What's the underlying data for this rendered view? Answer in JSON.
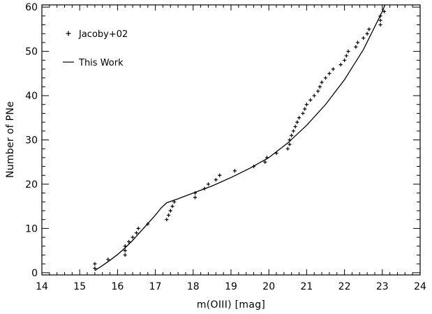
{
  "chart_data": {
    "type": "scatter",
    "title": "",
    "xlabel": "m(OIII) [mag]",
    "ylabel": "Number of PNe",
    "xlim": [
      14,
      24
    ],
    "ylim": [
      -0.5,
      60.5
    ],
    "xticks": [
      14,
      15,
      16,
      17,
      18,
      19,
      20,
      21,
      22,
      23,
      24
    ],
    "yticks": [
      0,
      10,
      20,
      30,
      40,
      50,
      60
    ],
    "grid": false,
    "legend_position": "top-left",
    "series": [
      {
        "name": "Jacoby+02",
        "kind": "scatter",
        "marker": "plus",
        "points": [
          [
            15.4,
            1
          ],
          [
            15.4,
            2
          ],
          [
            15.75,
            3
          ],
          [
            16.2,
            4
          ],
          [
            16.2,
            5
          ],
          [
            16.2,
            6
          ],
          [
            16.3,
            7
          ],
          [
            16.4,
            8
          ],
          [
            16.5,
            9
          ],
          [
            16.55,
            10
          ],
          [
            16.8,
            11
          ],
          [
            17.3,
            12
          ],
          [
            17.35,
            13
          ],
          [
            17.4,
            14
          ],
          [
            17.45,
            15
          ],
          [
            17.5,
            16
          ],
          [
            18.05,
            17
          ],
          [
            18.05,
            18
          ],
          [
            18.3,
            19
          ],
          [
            18.4,
            20
          ],
          [
            18.6,
            21
          ],
          [
            18.7,
            22
          ],
          [
            19.1,
            23
          ],
          [
            19.6,
            24
          ],
          [
            19.9,
            25
          ],
          [
            19.95,
            26
          ],
          [
            20.2,
            27
          ],
          [
            20.5,
            28
          ],
          [
            20.55,
            29
          ],
          [
            20.55,
            30
          ],
          [
            20.6,
            31
          ],
          [
            20.65,
            32
          ],
          [
            20.7,
            33
          ],
          [
            20.75,
            34
          ],
          [
            20.8,
            35
          ],
          [
            20.9,
            36
          ],
          [
            20.95,
            37
          ],
          [
            21.0,
            38
          ],
          [
            21.1,
            39
          ],
          [
            21.2,
            40
          ],
          [
            21.3,
            41
          ],
          [
            21.35,
            42
          ],
          [
            21.4,
            43
          ],
          [
            21.5,
            44
          ],
          [
            21.6,
            45
          ],
          [
            21.7,
            46
          ],
          [
            21.9,
            47
          ],
          [
            22.0,
            48
          ],
          [
            22.05,
            49
          ],
          [
            22.1,
            50
          ],
          [
            22.3,
            51
          ],
          [
            22.35,
            52
          ],
          [
            22.5,
            53
          ],
          [
            22.6,
            54
          ],
          [
            22.65,
            55
          ],
          [
            22.95,
            56
          ],
          [
            22.95,
            57
          ],
          [
            22.95,
            58
          ],
          [
            23.05,
            59
          ]
        ]
      },
      {
        "name": "This Work",
        "kind": "line",
        "points": [
          [
            15.4,
            0.5
          ],
          [
            15.6,
            1.6
          ],
          [
            15.8,
            2.8
          ],
          [
            16.0,
            4.1
          ],
          [
            16.2,
            5.6
          ],
          [
            16.4,
            7.3
          ],
          [
            16.6,
            9.2
          ],
          [
            16.8,
            11.1
          ],
          [
            17.0,
            13.0
          ],
          [
            17.15,
            14.6
          ],
          [
            17.3,
            15.8
          ],
          [
            17.6,
            16.7
          ],
          [
            18.0,
            18.0
          ],
          [
            18.5,
            19.6
          ],
          [
            19.0,
            21.5
          ],
          [
            19.5,
            23.6
          ],
          [
            20.0,
            26.0
          ],
          [
            20.5,
            29.3
          ],
          [
            21.0,
            33.3
          ],
          [
            21.5,
            38.0
          ],
          [
            22.0,
            43.6
          ],
          [
            22.5,
            50.4
          ],
          [
            23.0,
            59.0
          ],
          [
            23.07,
            60.5
          ]
        ]
      }
    ]
  }
}
